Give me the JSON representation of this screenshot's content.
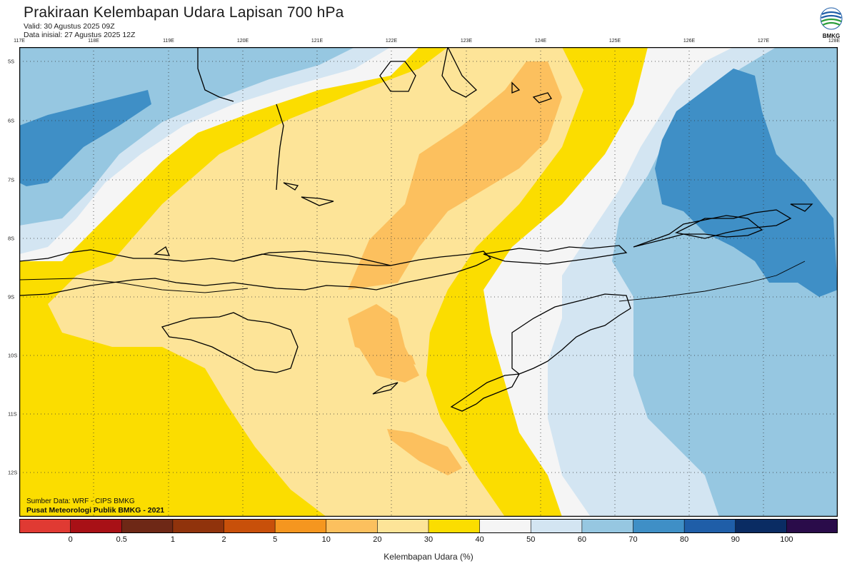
{
  "header": {
    "title": "Prakiraan Kelembapan Udara Lapisan 700 hPa",
    "valid": "Valid: 30 Agustus 2025 09Z",
    "init": "Data inisial: 27 Agustus 2025 12Z"
  },
  "logo": {
    "text": "BMKG",
    "icon": "bmkg-logo-icon"
  },
  "axes": {
    "lon_labels": [
      "117E",
      "118E",
      "119E",
      "120E",
      "121E",
      "122E",
      "123E",
      "124E",
      "125E",
      "126E",
      "127E",
      "128E"
    ],
    "lat_labels": [
      "5S",
      "6S",
      "7S",
      "8S",
      "9S",
      "10S",
      "11S",
      "12S"
    ],
    "lon_range": [
      117,
      128
    ],
    "lat_range": [
      -4.8,
      -12.8
    ],
    "grid": true
  },
  "credits": {
    "source": "Sumber Data: WRF - CIPS BMKG",
    "center": "Pusat Meteorologi Publik BMKG - 2021"
  },
  "colorbar": {
    "title": "Kelembapan Udara (%)",
    "ticks": [
      "0",
      "0.5",
      "1",
      "2",
      "5",
      "10",
      "20",
      "30",
      "40",
      "50",
      "60",
      "70",
      "80",
      "90",
      "100"
    ],
    "colors": [
      "#e03a33",
      "#a81016",
      "#6e2816",
      "#90330c",
      "#c8500a",
      "#f5961f",
      "#fcc05e",
      "#fde498",
      "#fbdd00",
      "#f5f5f5",
      "#d3e5f2",
      "#96c7e1",
      "#3f8fc6",
      "#1f5ea8",
      "#0a2c63",
      "#2a0c4a"
    ]
  },
  "map_fill": {
    "background": "#fbdd00",
    "humidity_bands": [
      "#fde498",
      "#fcc05e",
      "#f5f5f5",
      "#d3e5f2",
      "#96c7e1",
      "#3f8fc6"
    ],
    "coastline": "#000000"
  }
}
